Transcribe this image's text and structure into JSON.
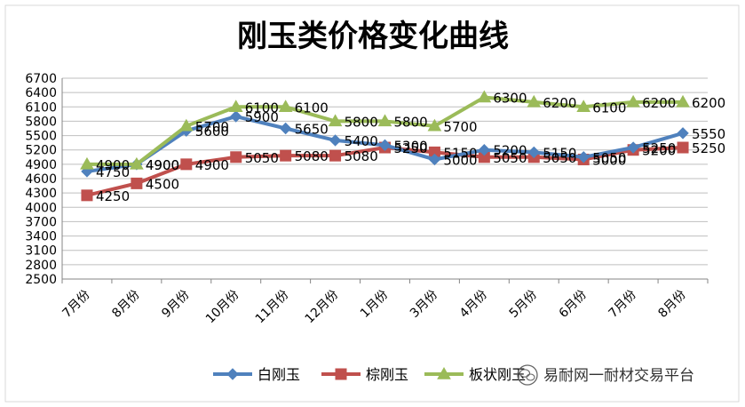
{
  "chart_data": {
    "type": "line",
    "title": "刚玉类价格变化曲线",
    "xlabel": "",
    "ylabel": "",
    "categories": [
      "7月份",
      "8月份",
      "9月份",
      "10月份",
      "11月份",
      "12月份",
      "1月份",
      "3月份",
      "4月份",
      "5月份",
      "6月份",
      "7月份",
      "8月份"
    ],
    "ylim": [
      2500,
      6700
    ],
    "yticks": [
      2500,
      2800,
      3100,
      3400,
      3700,
      4000,
      4300,
      4600,
      4900,
      5200,
      5500,
      5800,
      6100,
      6400,
      6700
    ],
    "grid": true,
    "legend_position": "bottom",
    "series": [
      {
        "name": "白刚玉",
        "color": "#4F81BD",
        "marker": "diamond",
        "values": [
          4750,
          4900,
          5600,
          5900,
          5650,
          5400,
          5300,
          5000,
          5200,
          5150,
          5050,
          5250,
          5550
        ]
      },
      {
        "name": "棕刚玉",
        "color": "#C0504D",
        "marker": "square",
        "values": [
          4250,
          4500,
          4900,
          5050,
          5080,
          5080,
          5250,
          5150,
          5050,
          5050,
          5000,
          5200,
          5250
        ]
      },
      {
        "name": "板状刚玉",
        "color": "#9BBB59",
        "marker": "triangle",
        "values": [
          4900,
          4900,
          5700,
          6100,
          6100,
          5800,
          5800,
          5700,
          6300,
          6200,
          6100,
          6200,
          6200
        ]
      }
    ]
  },
  "watermark": {
    "text": "易耐网一耐材交易平台",
    "icon": "wechat-icon"
  }
}
